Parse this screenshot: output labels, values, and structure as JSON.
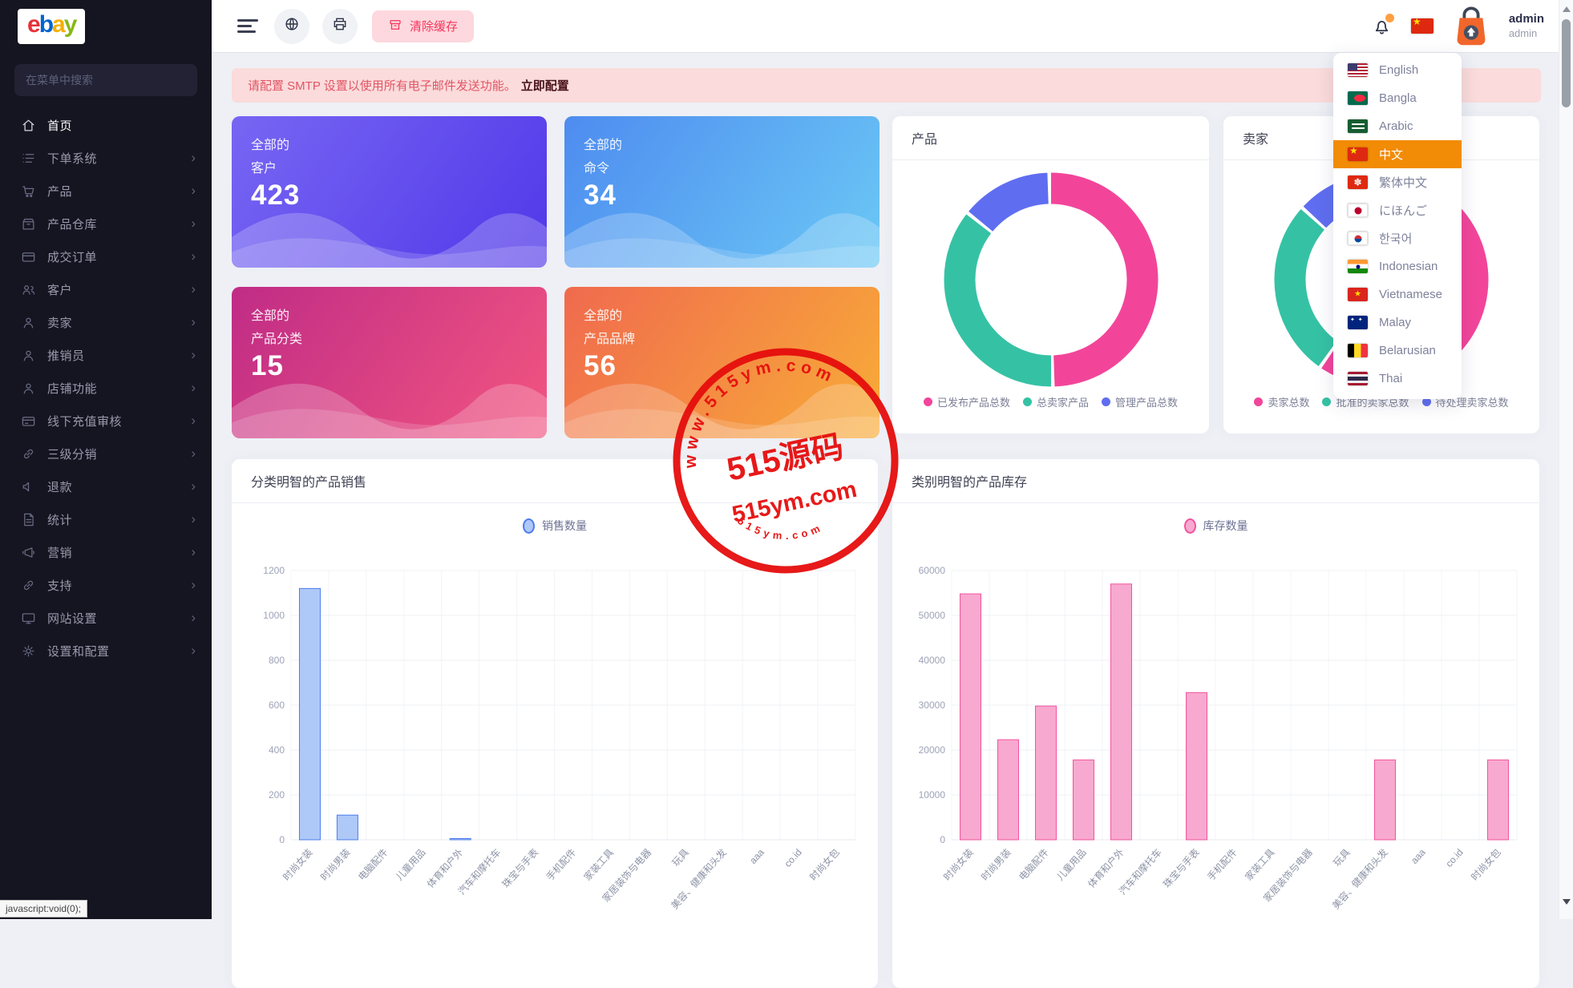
{
  "brand": {
    "logo_letters": [
      "e",
      "b",
      "a",
      "y"
    ],
    "logo_colors": [
      "#E53238",
      "#0064D2",
      "#F5AF02",
      "#86B817"
    ]
  },
  "sidebar": {
    "search_placeholder": "在菜单中搜索",
    "items": [
      {
        "label": "首页",
        "icon": "home",
        "active": true,
        "expandable": false
      },
      {
        "label": "下单系统",
        "icon": "list",
        "active": false,
        "expandable": true
      },
      {
        "label": "产品",
        "icon": "cart",
        "active": false,
        "expandable": true
      },
      {
        "label": "产品仓库",
        "icon": "box",
        "active": false,
        "expandable": true
      },
      {
        "label": "成交订单",
        "icon": "card",
        "active": false,
        "expandable": true
      },
      {
        "label": "客户",
        "icon": "users",
        "active": false,
        "expandable": true
      },
      {
        "label": "卖家",
        "icon": "user",
        "active": false,
        "expandable": true
      },
      {
        "label": "推销员",
        "icon": "user",
        "active": false,
        "expandable": true
      },
      {
        "label": "店铺功能",
        "icon": "user",
        "active": false,
        "expandable": true
      },
      {
        "label": "线下充值审核",
        "icon": "card2",
        "active": false,
        "expandable": true
      },
      {
        "label": "三级分销",
        "icon": "link",
        "active": false,
        "expandable": true
      },
      {
        "label": "退款",
        "icon": "speaker",
        "active": false,
        "expandable": true
      },
      {
        "label": "统计",
        "icon": "doc",
        "active": false,
        "expandable": true
      },
      {
        "label": "营销",
        "icon": "megaphone",
        "active": false,
        "expandable": true
      },
      {
        "label": "支持",
        "icon": "link",
        "active": false,
        "expandable": true
      },
      {
        "label": "网站设置",
        "icon": "monitor",
        "active": false,
        "expandable": true
      },
      {
        "label": "设置和配置",
        "icon": "gear",
        "active": false,
        "expandable": true
      }
    ]
  },
  "topbar": {
    "clear_cache_label": "清除缓存",
    "user": {
      "name": "admin",
      "role": "admin"
    }
  },
  "alert": {
    "message": "请配置 SMTP 设置以使用所有电子邮件发送功能。",
    "action": "立即配置"
  },
  "stat_cards": [
    {
      "prefix": "全部的",
      "label": "客户",
      "value": "423",
      "gradient_from": "#7766F3",
      "gradient_to": "#5138E9"
    },
    {
      "prefix": "全部的",
      "label": "命令",
      "value": "34",
      "gradient_from": "#4E8CF0",
      "gradient_to": "#6BC8F5"
    },
    {
      "prefix": "全部的",
      "label": "产品分类",
      "value": "15",
      "gradient_from": "#C02C86",
      "gradient_to": "#F25580"
    },
    {
      "prefix": "全部的",
      "label": "产品品牌",
      "value": "56",
      "gradient_from": "#F06A4E",
      "gradient_to": "#F8AC38"
    }
  ],
  "language_menu": {
    "items": [
      {
        "label": "English",
        "flag": "us",
        "selected": false
      },
      {
        "label": "Bangla",
        "flag": "bd",
        "selected": false
      },
      {
        "label": "Arabic",
        "flag": "sa",
        "selected": false
      },
      {
        "label": "中文",
        "flag": "cn",
        "selected": true
      },
      {
        "label": "繁体中文",
        "flag": "hk",
        "selected": false
      },
      {
        "label": "にほんご",
        "flag": "jp",
        "selected": false
      },
      {
        "label": "한국어",
        "flag": "kr",
        "selected": false
      },
      {
        "label": "Indonesian",
        "flag": "in",
        "selected": false
      },
      {
        "label": "Vietnamese",
        "flag": "vn",
        "selected": false
      },
      {
        "label": "Malay",
        "flag": "my",
        "selected": false
      },
      {
        "label": "Belarusian",
        "flag": "by",
        "selected": false
      },
      {
        "label": "Thai",
        "flag": "th",
        "selected": false
      }
    ],
    "selected_color": "#F28B05"
  },
  "chart_data": [
    {
      "type": "pie",
      "title": "产品",
      "donut": true,
      "legend_position": "bottom",
      "series": [
        {
          "name": "已发布产品总数",
          "value": 50,
          "color": "#F2459A"
        },
        {
          "name": "总卖家产品",
          "value": 36,
          "color": "#35C2A4"
        },
        {
          "name": "管理产品总数",
          "value": 14,
          "color": "#5F6EF0"
        }
      ],
      "note": "values are approximate percentages read from arc angles"
    },
    {
      "type": "pie",
      "title": "卖家",
      "donut": true,
      "legend_position": "bottom",
      "series": [
        {
          "name": "卖家总数",
          "value": 60,
          "color": "#F2459A"
        },
        {
          "name": "批准的卖家总数",
          "value": 27,
          "color": "#35C2A4"
        },
        {
          "name": "待处理卖家总数",
          "value": 13,
          "color": "#5F6EF0"
        }
      ],
      "note": "values are approximate percentages read from arc angles"
    },
    {
      "type": "bar",
      "title": "分类明智的产品销售",
      "legend": "销售数量",
      "categories": [
        "时尚女装",
        "时尚男装",
        "电脑配件",
        "儿童用品",
        "体育和户外",
        "汽车和摩托车",
        "珠宝与手表",
        "手机配件",
        "家装工具",
        "家居装饰与电器",
        "玩具",
        "美容、健康和头发",
        "aaa",
        "co.id",
        "时尚女包"
      ],
      "values": [
        1120,
        110,
        0,
        0,
        5,
        0,
        0,
        0,
        0,
        0,
        0,
        0,
        0,
        0,
        0
      ],
      "ylim": [
        0,
        1200
      ],
      "ytick_step": 200,
      "grid": true,
      "bar_fill": "#AEC9F8",
      "bar_stroke": "#4E7CED"
    },
    {
      "type": "bar",
      "title": "类别明智的产品库存",
      "legend": "库存数量",
      "categories": [
        "时尚女装",
        "时尚男装",
        "电脑配件",
        "儿童用品",
        "体育和户外",
        "汽车和摩托车",
        "珠宝与手表",
        "手机配件",
        "家装工具",
        "家居装饰与电器",
        "玩具",
        "美容、健康和头发",
        "aaa",
        "co.id",
        "时尚女包"
      ],
      "values": [
        54800,
        22300,
        29800,
        17800,
        57000,
        0,
        32800,
        0,
        0,
        0,
        0,
        17800,
        0,
        0,
        17800
      ],
      "ylim": [
        0,
        60000
      ],
      "ytick_step": 10000,
      "grid": true,
      "bar_fill": "#F8A9CF",
      "bar_stroke": "#F2549D"
    }
  ],
  "watermark": {
    "arc_top": "www.515ym.com",
    "center_main": "515源码",
    "center_sub": "515ym.com",
    "arc_bottom": "515ym.com",
    "color": "#E60D0D"
  },
  "status_tooltip": "javascript:void(0);"
}
